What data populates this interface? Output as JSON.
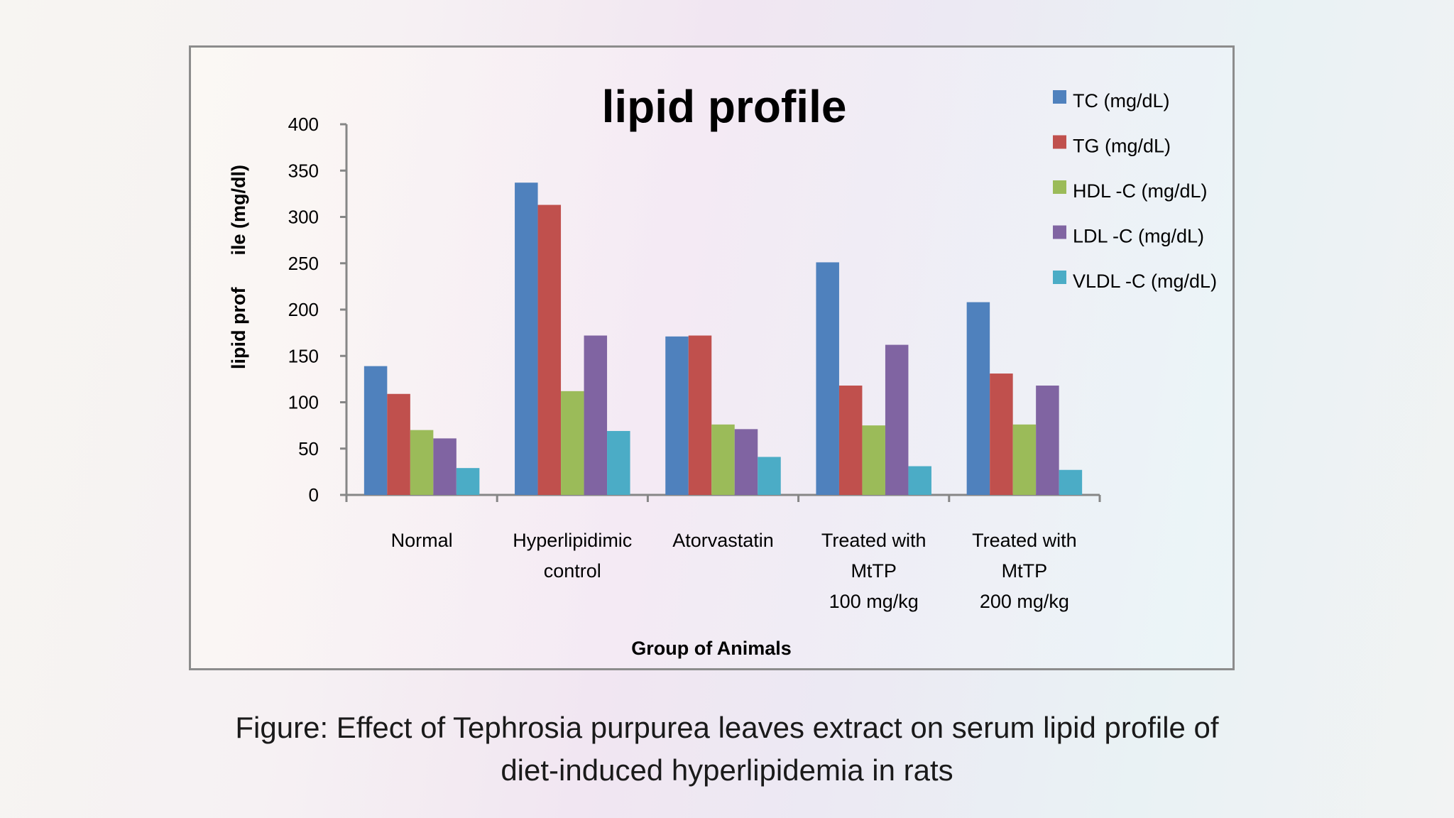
{
  "chart_data": {
    "type": "bar",
    "title": "lipid profile",
    "xlabel": "Group of Animals",
    "ylabel": "lipid prof      ile (mg/dl)",
    "ylim": [
      0,
      400
    ],
    "yticks": [
      "0",
      "50",
      "100",
      "150",
      "200",
      "250",
      "300",
      "350",
      "400"
    ],
    "grid": false,
    "legend_position": "top-right",
    "categories": [
      [
        "Normal"
      ],
      [
        "Hyperlipidimic",
        "control"
      ],
      [
        "Atorvastatin"
      ],
      [
        "Treated with",
        "MtTP",
        "100 mg/kg"
      ],
      [
        "Treated with",
        "MtTP",
        "200 mg/kg"
      ]
    ],
    "series": [
      {
        "name": "TC (mg/dL)",
        "color": "#4f81bd",
        "values": [
          139,
          337,
          171,
          251,
          208
        ]
      },
      {
        "name": "TG (mg/dL)",
        "color": "#c0504d",
        "values": [
          109,
          313,
          172,
          118,
          131
        ]
      },
      {
        "name": "HDL -C (mg/dL)",
        "color": "#9bbb59",
        "values": [
          70,
          112,
          76,
          75,
          76
        ]
      },
      {
        "name": "LDL -C (mg/dL)",
        "color": "#8064a2",
        "values": [
          61,
          172,
          71,
          162,
          118
        ]
      },
      {
        "name": "VLDL -C (mg/dL)",
        "color": "#4bacc6",
        "values": [
          29,
          69,
          41,
          31,
          27
        ]
      }
    ]
  },
  "caption": {
    "line1": "Figure: Effect of Tephrosia purpurea leaves extract on serum lipid profile of",
    "line2": "diet-induced hyperlipidemia in rats"
  }
}
